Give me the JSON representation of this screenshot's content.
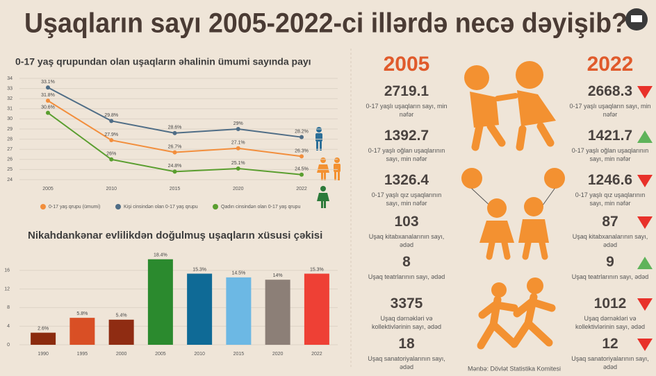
{
  "title": "Uşaqların sayı 2005-2022-ci illərdə necə dəyişib?",
  "chart_data": [
    {
      "type": "line",
      "title": "0-17 yaş qrupundan olan uşaqların əhalinin ümumi sayında payı",
      "categories": [
        "2005",
        "2010",
        "2015",
        "2020",
        "2022"
      ],
      "series": [
        {
          "name": "0-17 yaş qrupu (ümumi)",
          "color": "#f28e3c",
          "values": [
            31.8,
            27.9,
            26.7,
            27.1,
            26.3
          ],
          "value_labels": [
            "31.8%",
            "27.9%",
            "26.7%",
            "27.1%",
            "26.3%"
          ]
        },
        {
          "name": "Kişi cinsindən olan 0-17 yaş qrupu",
          "color": "#4f6d86",
          "values": [
            33.1,
            29.8,
            28.6,
            29,
            28.2
          ],
          "value_labels": [
            "33.1%",
            "29.8%",
            "28.6%",
            "29%",
            "28.2%"
          ]
        },
        {
          "name": "Qadın cinsindən olan 0-17 yaş qrupu",
          "color": "#5a9e2f",
          "values": [
            30.6,
            26,
            24.8,
            25.1,
            24.5
          ],
          "value_labels": [
            "30.6%",
            "26%",
            "24.8%",
            "25.1%",
            "24.5%"
          ]
        }
      ],
      "ylim": [
        24,
        34
      ],
      "yticks": [
        24,
        25,
        26,
        27,
        28,
        29,
        30,
        31,
        32,
        33,
        34
      ],
      "grid": true
    },
    {
      "type": "bar",
      "title": "Nikahdankənar evlilikdən doğulmuş uşaqların xüsusi çəkisi",
      "categories": [
        "1990",
        "1995",
        "2000",
        "2005",
        "2010",
        "2015",
        "2020",
        "2022"
      ],
      "values": [
        2.6,
        5.8,
        5.4,
        18.4,
        15.3,
        14.5,
        14,
        15.3
      ],
      "value_labels": [
        "2.6%",
        "5.8%",
        "5.4%",
        "18.4%",
        "15.3%",
        "14.5%",
        "14%",
        "15.3%"
      ],
      "colors": [
        "#8b2b0e",
        "#d94f25",
        "#8f2c12",
        "#2b8a2e",
        "#0f6a96",
        "#6cb8e4",
        "#8c7f77",
        "#ee4035"
      ],
      "ylim": [
        0,
        20
      ],
      "yticks": [
        0,
        4,
        8,
        12,
        16
      ],
      "grid": true
    }
  ],
  "stats": {
    "year_a": "2005",
    "year_b": "2022",
    "rows": [
      {
        "label": "0-17 yaşlı uşaqların sayı, min nəfər",
        "a": 2719.1,
        "b": 2668.3,
        "arrow": "down"
      },
      {
        "label": "0-17 yaşlı oğlan uşaqlarının sayı, min nəfər",
        "a": 1392.7,
        "b": 1421.7,
        "arrow": "up"
      },
      {
        "label": "0-17 yaşlı qız uşaqlarının sayı, min nəfər",
        "a": 1326.4,
        "b": 1246.6,
        "arrow": "down"
      },
      {
        "label": "Uşaq kitabxanalarının sayı, ədəd",
        "a": 103,
        "b": 87,
        "arrow": "down"
      },
      {
        "label": "Uşaq teatrlarının sayı, ədəd",
        "a": 8,
        "b": 9,
        "arrow": "up"
      },
      {
        "label": "Uşaq dərnəkləri və kollektivlərinin sayı, ədəd",
        "a": 3375,
        "b": 1012,
        "arrow": "down"
      },
      {
        "label": "Uşaq sanatoriyalarının sayı, ədəd",
        "a": 18,
        "b": 12,
        "arrow": "down"
      }
    ]
  },
  "source": "Mənbə: Dövlət Statistika Komitesi"
}
